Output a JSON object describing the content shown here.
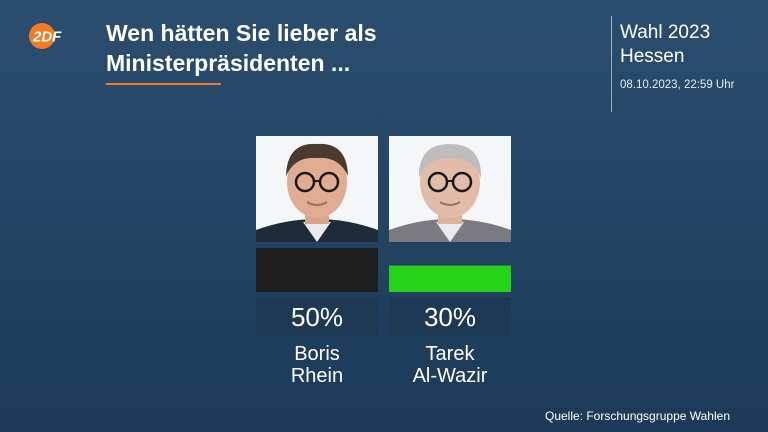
{
  "header": {
    "logo_text": "2DF",
    "title_line1": "Wen hätten Sie lieber als",
    "title_line2": "Ministerpräsidenten ...",
    "event_line1": "Wahl 2023",
    "event_line2": "Hessen",
    "timestamp": "08.10.2023, 22:59 Uhr"
  },
  "colors": {
    "accent": "#f47c20",
    "bar_rhein": "#1e1e1e",
    "bar_alwazir": "#27d21a",
    "label_box": "#1d3954"
  },
  "chart_data": {
    "type": "bar",
    "categories": [
      "Boris Rhein",
      "Tarek Al-Wazir"
    ],
    "values": [
      50,
      30
    ],
    "value_labels": [
      "50%",
      "30%"
    ],
    "name_lines": [
      [
        "Boris",
        "Rhein"
      ],
      [
        "Tarek",
        "Al-Wazir"
      ]
    ],
    "colors": [
      "#1e1e1e",
      "#27d21a"
    ],
    "ylim": [
      0,
      50
    ],
    "title": "Wen hätten Sie lieber als Ministerpräsidenten ..."
  },
  "footer": {
    "source": "Quelle: Forschungsgruppe Wahlen"
  }
}
